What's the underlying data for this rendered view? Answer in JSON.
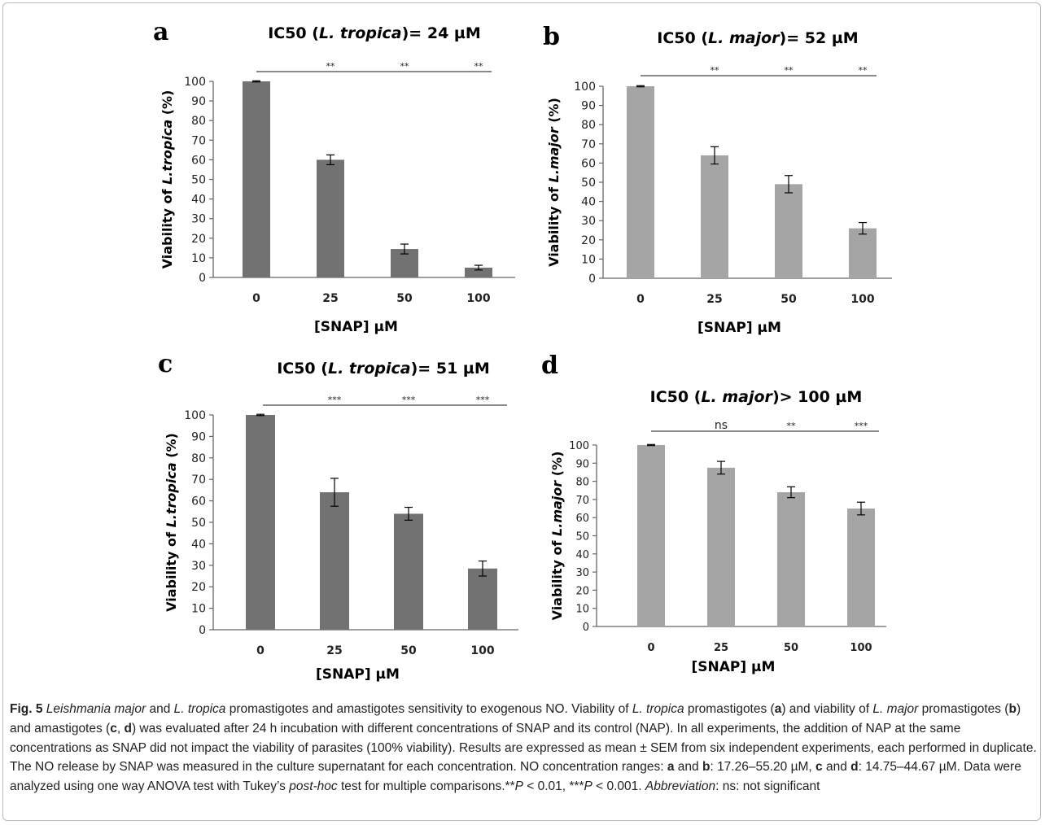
{
  "panel_letters": [
    "a",
    "b",
    "c",
    "d"
  ],
  "colors": {
    "dark_bar": "#727272",
    "light_bar": "#a5a5a5",
    "axis": "#666666"
  },
  "chart_data": [
    {
      "id": "a",
      "type": "bar",
      "title_parts": [
        "IC50 (",
        "L. tropica",
        ")= 24 µM"
      ],
      "xlabel": "[SNAP] µM",
      "ylabel_parts": [
        "Viability of ",
        "L.tropica",
        "  (%)"
      ],
      "categories": [
        "0",
        "25",
        "50",
        "100"
      ],
      "values": [
        100,
        60,
        14.5,
        5
      ],
      "errors": [
        0.3,
        2.5,
        2.5,
        1.2
      ],
      "significance": [
        "**",
        "**",
        "**"
      ],
      "ylim": [
        0,
        100
      ],
      "yticks": [
        0,
        10,
        20,
        30,
        40,
        50,
        60,
        70,
        80,
        90,
        100
      ],
      "grid": false,
      "bar_color": "dark"
    },
    {
      "id": "b",
      "type": "bar",
      "title_parts": [
        "IC50 (",
        "L. major",
        ")= 52 µM"
      ],
      "xlabel": "[SNAP] µM",
      "ylabel_parts": [
        "Viability of  ",
        "L.major",
        "  (%)"
      ],
      "categories": [
        "0",
        "25",
        "50",
        "100"
      ],
      "values": [
        100,
        64,
        49,
        26
      ],
      "errors": [
        0.3,
        4.5,
        4.5,
        3
      ],
      "significance": [
        "**",
        "**",
        "**"
      ],
      "ylim": [
        0,
        100
      ],
      "yticks": [
        0,
        10,
        20,
        30,
        40,
        50,
        60,
        70,
        80,
        90,
        100
      ],
      "grid": false,
      "bar_color": "light"
    },
    {
      "id": "c",
      "type": "bar",
      "title_parts": [
        "IC50 (",
        "L. tropica",
        ")= 51 µM"
      ],
      "xlabel": "[SNAP] µM",
      "ylabel_parts": [
        "Viability of ",
        "L.tropica",
        "  (%)"
      ],
      "categories": [
        "0",
        "25",
        "50",
        "100"
      ],
      "values": [
        100,
        64,
        54,
        28.5
      ],
      "errors": [
        0.3,
        6.5,
        3,
        3.5
      ],
      "significance": [
        "***",
        "***",
        "***"
      ],
      "ylim": [
        0,
        100
      ],
      "yticks": [
        0,
        10,
        20,
        30,
        40,
        50,
        60,
        70,
        80,
        90,
        100
      ],
      "grid": false,
      "bar_color": "dark"
    },
    {
      "id": "d",
      "type": "bar",
      "title_parts": [
        "IC50 (",
        "L. major",
        ")> 100 µM"
      ],
      "xlabel": "[SNAP] µM",
      "ylabel_parts": [
        "Viability of  ",
        "L.major",
        " (%)"
      ],
      "categories": [
        "0",
        "25",
        "50",
        "100"
      ],
      "values": [
        100,
        87.5,
        74,
        65
      ],
      "errors": [
        0.3,
        3.5,
        3,
        3.5
      ],
      "significance": [
        "ns",
        "**",
        "***"
      ],
      "ylim": [
        0,
        100
      ],
      "yticks": [
        0,
        10,
        20,
        30,
        40,
        50,
        60,
        70,
        80,
        90,
        100
      ],
      "grid": false,
      "bar_color": "light"
    }
  ],
  "caption": {
    "fig_label": "Fig. 5",
    "t1": "Leishmania major",
    "t2": " and ",
    "t3": "L. tropica",
    "t4": " promastigotes and amastigotes sensitivity to exogenous NO. Viability of ",
    "t5": "L. tropica",
    "t6": " promastigotes (",
    "t7": "a",
    "t8": ") and viability of ",
    "t9": "L. major",
    "t10": " promastigotes (",
    "t11": "b",
    "t12": ") and amastigotes (",
    "t13": "c",
    "t14": ", ",
    "t15": "d",
    "t16": ") was evaluated after 24 h incubation with different concentrations of SNAP and its control (NAP). In all experiments, the addition of NAP at the same concentrations as SNAP did not impact the viability of parasites (100% viability). Results are expressed as mean ± SEM from six independent experiments, each performed in duplicate. The NO release by SNAP was measured in the culture supernatant for each concentration. NO concentration ranges: ",
    "t17": "a",
    "t18": " and ",
    "t19": "b",
    "t20": ": 17.26–55.20 µM, ",
    "t21": "c",
    "t22": " and ",
    "t23": "d",
    "t24": ": 14.75–44.67 µM. Data were analyzed using one way ANOVA test with Tukey’s ",
    "t25": "post-hoc",
    "t26": " test for multiple comparisons.**",
    "t27": "P",
    "t28": " < 0.01, ***",
    "t29": "P",
    "t30": " < 0.001. ",
    "t31": "Abbreviation",
    "t32": ": ns: not significant"
  }
}
